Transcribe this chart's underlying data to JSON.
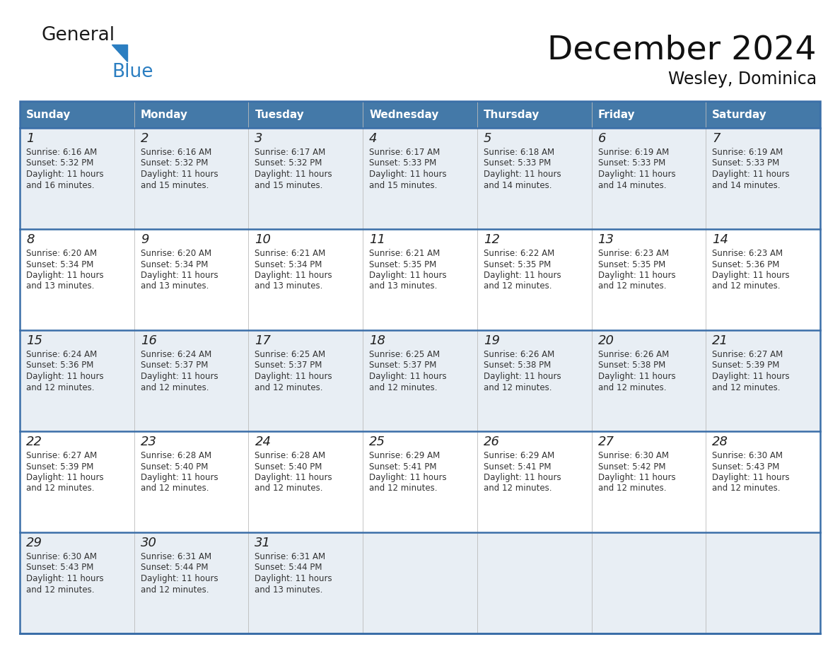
{
  "title": "December 2024",
  "subtitle": "Wesley, Dominica",
  "days_of_week": [
    "Sunday",
    "Monday",
    "Tuesday",
    "Wednesday",
    "Thursday",
    "Friday",
    "Saturday"
  ],
  "header_bg": "#4479A8",
  "header_text_color": "#FFFFFF",
  "odd_row_bg": "#E8EEF4",
  "even_row_bg": "#FFFFFF",
  "border_color": "#3A6EA8",
  "day_number_color": "#222222",
  "info_text_color": "#333333",
  "calendar_data": [
    [
      {
        "day": "1",
        "sunrise": "6:16 AM",
        "sunset": "5:32 PM",
        "daylight_h": "11",
        "daylight_m": "16"
      },
      {
        "day": "2",
        "sunrise": "6:16 AM",
        "sunset": "5:32 PM",
        "daylight_h": "11",
        "daylight_m": "15"
      },
      {
        "day": "3",
        "sunrise": "6:17 AM",
        "sunset": "5:32 PM",
        "daylight_h": "11",
        "daylight_m": "15"
      },
      {
        "day": "4",
        "sunrise": "6:17 AM",
        "sunset": "5:33 PM",
        "daylight_h": "11",
        "daylight_m": "15"
      },
      {
        "day": "5",
        "sunrise": "6:18 AM",
        "sunset": "5:33 PM",
        "daylight_h": "11",
        "daylight_m": "14"
      },
      {
        "day": "6",
        "sunrise": "6:19 AM",
        "sunset": "5:33 PM",
        "daylight_h": "11",
        "daylight_m": "14"
      },
      {
        "day": "7",
        "sunrise": "6:19 AM",
        "sunset": "5:33 PM",
        "daylight_h": "11",
        "daylight_m": "14"
      }
    ],
    [
      {
        "day": "8",
        "sunrise": "6:20 AM",
        "sunset": "5:34 PM",
        "daylight_h": "11",
        "daylight_m": "13"
      },
      {
        "day": "9",
        "sunrise": "6:20 AM",
        "sunset": "5:34 PM",
        "daylight_h": "11",
        "daylight_m": "13"
      },
      {
        "day": "10",
        "sunrise": "6:21 AM",
        "sunset": "5:34 PM",
        "daylight_h": "11",
        "daylight_m": "13"
      },
      {
        "day": "11",
        "sunrise": "6:21 AM",
        "sunset": "5:35 PM",
        "daylight_h": "11",
        "daylight_m": "13"
      },
      {
        "day": "12",
        "sunrise": "6:22 AM",
        "sunset": "5:35 PM",
        "daylight_h": "11",
        "daylight_m": "12"
      },
      {
        "day": "13",
        "sunrise": "6:23 AM",
        "sunset": "5:35 PM",
        "daylight_h": "11",
        "daylight_m": "12"
      },
      {
        "day": "14",
        "sunrise": "6:23 AM",
        "sunset": "5:36 PM",
        "daylight_h": "11",
        "daylight_m": "12"
      }
    ],
    [
      {
        "day": "15",
        "sunrise": "6:24 AM",
        "sunset": "5:36 PM",
        "daylight_h": "11",
        "daylight_m": "12"
      },
      {
        "day": "16",
        "sunrise": "6:24 AM",
        "sunset": "5:37 PM",
        "daylight_h": "11",
        "daylight_m": "12"
      },
      {
        "day": "17",
        "sunrise": "6:25 AM",
        "sunset": "5:37 PM",
        "daylight_h": "11",
        "daylight_m": "12"
      },
      {
        "day": "18",
        "sunrise": "6:25 AM",
        "sunset": "5:37 PM",
        "daylight_h": "11",
        "daylight_m": "12"
      },
      {
        "day": "19",
        "sunrise": "6:26 AM",
        "sunset": "5:38 PM",
        "daylight_h": "11",
        "daylight_m": "12"
      },
      {
        "day": "20",
        "sunrise": "6:26 AM",
        "sunset": "5:38 PM",
        "daylight_h": "11",
        "daylight_m": "12"
      },
      {
        "day": "21",
        "sunrise": "6:27 AM",
        "sunset": "5:39 PM",
        "daylight_h": "11",
        "daylight_m": "12"
      }
    ],
    [
      {
        "day": "22",
        "sunrise": "6:27 AM",
        "sunset": "5:39 PM",
        "daylight_h": "11",
        "daylight_m": "12"
      },
      {
        "day": "23",
        "sunrise": "6:28 AM",
        "sunset": "5:40 PM",
        "daylight_h": "11",
        "daylight_m": "12"
      },
      {
        "day": "24",
        "sunrise": "6:28 AM",
        "sunset": "5:40 PM",
        "daylight_h": "11",
        "daylight_m": "12"
      },
      {
        "day": "25",
        "sunrise": "6:29 AM",
        "sunset": "5:41 PM",
        "daylight_h": "11",
        "daylight_m": "12"
      },
      {
        "day": "26",
        "sunrise": "6:29 AM",
        "sunset": "5:41 PM",
        "daylight_h": "11",
        "daylight_m": "12"
      },
      {
        "day": "27",
        "sunrise": "6:30 AM",
        "sunset": "5:42 PM",
        "daylight_h": "11",
        "daylight_m": "12"
      },
      {
        "day": "28",
        "sunrise": "6:30 AM",
        "sunset": "5:43 PM",
        "daylight_h": "11",
        "daylight_m": "12"
      }
    ],
    [
      {
        "day": "29",
        "sunrise": "6:30 AM",
        "sunset": "5:43 PM",
        "daylight_h": "11",
        "daylight_m": "12"
      },
      {
        "day": "30",
        "sunrise": "6:31 AM",
        "sunset": "5:44 PM",
        "daylight_h": "11",
        "daylight_m": "12"
      },
      {
        "day": "31",
        "sunrise": "6:31 AM",
        "sunset": "5:44 PM",
        "daylight_h": "11",
        "daylight_m": "13"
      },
      null,
      null,
      null,
      null
    ]
  ],
  "logo_general_color": "#1a1a1a",
  "logo_blue_color": "#2B7EC1",
  "logo_triangle_color": "#2B7EC1",
  "figw": 11.88,
  "figh": 9.18
}
